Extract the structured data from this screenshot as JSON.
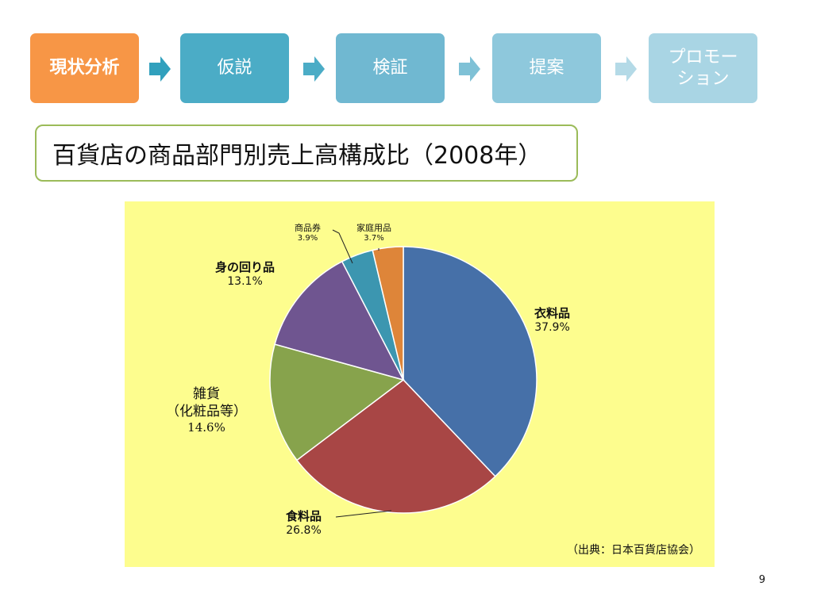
{
  "process": {
    "steps": [
      {
        "label": "現状分析",
        "color": "#f79646",
        "active": true
      },
      {
        "label": "仮説",
        "color": "#4bacc6",
        "active": false
      },
      {
        "label": "検証",
        "color": "#70b8d1",
        "active": false
      },
      {
        "label": "提案",
        "color": "#8ec8dc",
        "active": false
      },
      {
        "label": "プロモー\nション",
        "color": "#a9d5e4",
        "active": false
      }
    ],
    "arrow_colors": [
      "#31a0bd",
      "#4bacc6",
      "#7fc1d6",
      "#b4dae7"
    ]
  },
  "title": "百貨店の商品部門別売上高構成比（2008年）",
  "chart_data": {
    "type": "pie",
    "title": "",
    "slices": [
      {
        "label": "衣料品",
        "value": 37.9,
        "display": "37.9%",
        "color": "#4670a8"
      },
      {
        "label": "食料品",
        "value": 26.8,
        "display": "26.8%",
        "color": "#a84645"
      },
      {
        "label": "雑貨\n（化粧品等）",
        "value": 14.6,
        "display": "14.6%",
        "color": "#87a34c"
      },
      {
        "label": "身の回り品",
        "value": 13.1,
        "display": "13.1%",
        "color": "#6f5590"
      },
      {
        "label": "商品券",
        "value": 3.9,
        "display": "3.9%",
        "color": "#3c96b0"
      },
      {
        "label": "家庭用品",
        "value": 3.7,
        "display": "3.7%",
        "color": "#de8539"
      }
    ],
    "start": "12 o'clock",
    "direction": "clockwise",
    "background": "#fdfd8e"
  },
  "source": "（出典：日本百貨店協会）",
  "page_number": "9"
}
